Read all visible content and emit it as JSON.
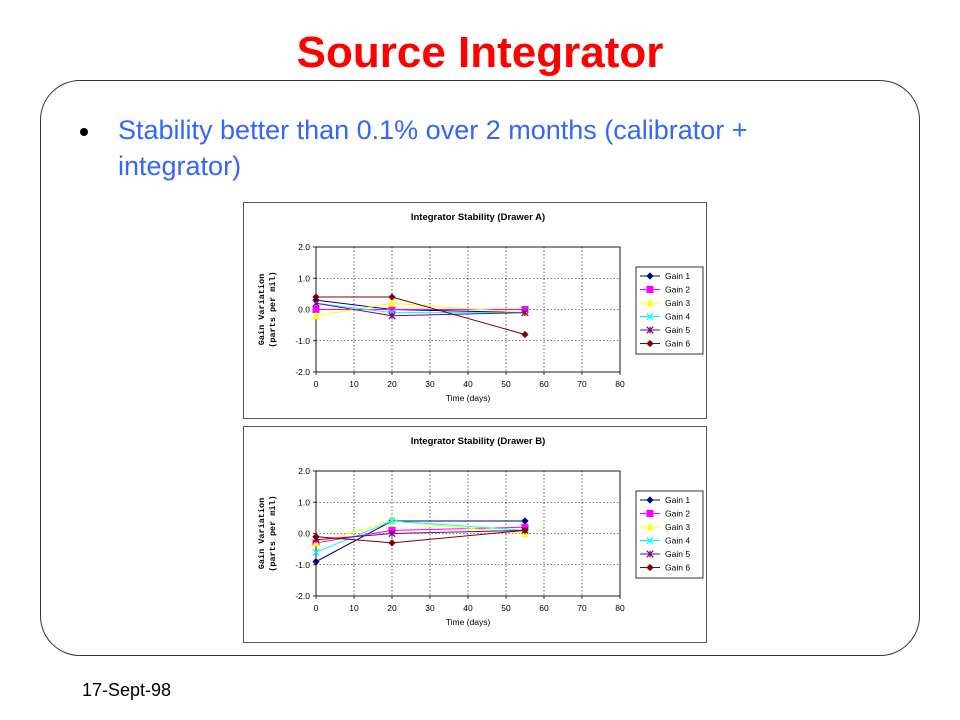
{
  "slide": {
    "title": "Source Integrator",
    "bullet": "Stability better than 0.1% over 2 months (calibrator + integrator)",
    "footer_date": "17-Sept-98"
  },
  "chart_data": [
    {
      "type": "line",
      "title": "Integrator Stability (Drawer A)",
      "xlabel": "Time (days)",
      "ylabel_lines": [
        "Gain Variation",
        "(parts per mil)"
      ],
      "xlim": [
        0,
        80
      ],
      "ylim": [
        -2.0,
        2.0
      ],
      "xticks": [
        "0",
        "10",
        "20",
        "30",
        "40",
        "50",
        "60",
        "70",
        "80"
      ],
      "yticks": [
        "2.0",
        "1.0",
        "0.0",
        "-1.0",
        "-2.0"
      ],
      "grid": true,
      "legend_position": "right",
      "series": [
        {
          "name": "Gain 1",
          "color": "#000080",
          "marker": "diamond",
          "x": [
            0,
            20,
            55
          ],
          "y": [
            0.3,
            0.0,
            -0.1
          ]
        },
        {
          "name": "Gain 2",
          "color": "#ff00ff",
          "marker": "square",
          "x": [
            0,
            20,
            55
          ],
          "y": [
            0.0,
            0.0,
            0.0
          ]
        },
        {
          "name": "Gain 3",
          "color": "#ffff00",
          "marker": "triangle",
          "x": [
            0,
            20,
            55
          ],
          "y": [
            -0.2,
            0.2,
            -0.1
          ]
        },
        {
          "name": "Gain 4",
          "color": "#00ffff",
          "marker": "x",
          "x": [
            0,
            20,
            55
          ],
          "y": [
            0.2,
            -0.1,
            -0.1
          ]
        },
        {
          "name": "Gain 5",
          "color": "#800080",
          "marker": "star",
          "x": [
            0,
            20,
            55
          ],
          "y": [
            0.2,
            -0.2,
            -0.1
          ]
        },
        {
          "name": "Gain 6",
          "color": "#800000",
          "marker": "diamond",
          "x": [
            0,
            20,
            55
          ],
          "y": [
            0.4,
            0.4,
            -0.8
          ]
        }
      ]
    },
    {
      "type": "line",
      "title": "Integrator Stability (Drawer B)",
      "xlabel": "Time (days)",
      "ylabel_lines": [
        "Gain Variation",
        "(parts per mil)"
      ],
      "xlim": [
        0,
        80
      ],
      "ylim": [
        -2.0,
        2.0
      ],
      "xticks": [
        "0",
        "10",
        "20",
        "30",
        "40",
        "50",
        "60",
        "70",
        "80"
      ],
      "yticks": [
        "2.0",
        "1.0",
        "0.0",
        "-1.0",
        "-2.0"
      ],
      "grid": true,
      "legend_position": "right",
      "series": [
        {
          "name": "Gain 1",
          "color": "#000080",
          "marker": "diamond",
          "x": [
            0,
            20,
            55
          ],
          "y": [
            -0.9,
            0.4,
            0.4
          ]
        },
        {
          "name": "Gain 2",
          "color": "#ff00ff",
          "marker": "square",
          "x": [
            0,
            20,
            55
          ],
          "y": [
            -0.3,
            0.1,
            0.2
          ]
        },
        {
          "name": "Gain 3",
          "color": "#ffff00",
          "marker": "triangle",
          "x": [
            0,
            20,
            55
          ],
          "y": [
            -0.3,
            0.4,
            0.0
          ]
        },
        {
          "name": "Gain 4",
          "color": "#00ffff",
          "marker": "x",
          "x": [
            0,
            20,
            55
          ],
          "y": [
            -0.6,
            0.4,
            0.1
          ]
        },
        {
          "name": "Gain 5",
          "color": "#800080",
          "marker": "star",
          "x": [
            0,
            20,
            55
          ],
          "y": [
            -0.2,
            0.0,
            0.1
          ]
        },
        {
          "name": "Gain 6",
          "color": "#800000",
          "marker": "diamond",
          "x": [
            0,
            20,
            55
          ],
          "y": [
            -0.1,
            -0.3,
            0.1
          ]
        }
      ]
    }
  ]
}
